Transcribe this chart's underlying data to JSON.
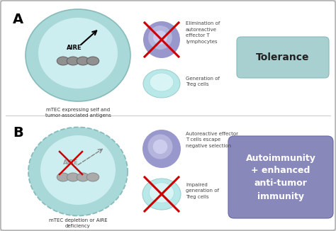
{
  "bg_color": "#d8d8d8",
  "panel_bg": "#ffffff",
  "label_A": "A",
  "label_B": "B",
  "text_mtec_A": "mTEC expressing self and\ntumor-associated antigens",
  "text_mtec_B": "mTEC depletion or AIRE\ndeficiency",
  "text_elim": "Elimination of\nautoreactive\neffector T\nlymphocytes",
  "text_gen": "Generation of\nTreg cells",
  "text_escape": "Autoreactive effector\nT cells escape\nnegative selection",
  "text_impaired": "Impaired\ngeneration of\nTreg cells",
  "text_tolerance": "Tolerance",
  "text_autoimmunity": "Autoimmunity\n+ enhanced\nanti-tumor\nimmunity",
  "color_teal_outer": "#a8d8d8",
  "color_teal_inner": "#cceef0",
  "color_purple_outer": "#9898cc",
  "color_purple_mid": "#b4b4dd",
  "color_purple_inner": "#ccccee",
  "color_treg_outer": "#b8e8e8",
  "color_treg_inner": "#d8f4f4",
  "color_tolerance_bg": "#a8d0d0",
  "color_autoimmunity_bg": "#8888bb",
  "color_red": "#cc0000",
  "color_dna_gray": "#909090",
  "color_dna_edge": "#606060",
  "color_border": "#aaaaaa"
}
